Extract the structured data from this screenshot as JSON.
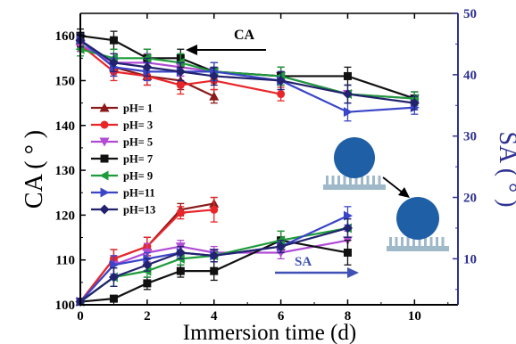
{
  "chart_data": {
    "type": "line",
    "title": "",
    "xlabel": "Immersion time (d)",
    "ylabel_left": "CA ( ° )",
    "ylabel_right": "SA ( ° )",
    "x_ticks": [
      "0",
      "2",
      "4",
      "6",
      "8",
      "10"
    ],
    "y_left_ticks": [
      "100",
      "110",
      "120",
      "130",
      "140",
      "150",
      "160"
    ],
    "y_right_ticks": [
      "10",
      "20",
      "30",
      "40",
      "50"
    ],
    "xlim": [
      0,
      11.3
    ],
    "ylim_left": [
      100,
      165
    ],
    "ylim_right": [
      2.5,
      50
    ],
    "grid": false,
    "legend_position": "left-middle",
    "annotations": {
      "ca_arrow": "CA",
      "sa_arrow": "SA"
    },
    "colors": {
      "right_axis": "#2e3192",
      "sa_arrow": "#3f51b5",
      "ca_arrow": "#000000"
    },
    "series": [
      {
        "name": "pH= 1",
        "color": "#8b1a1a",
        "marker": "triangle-up",
        "ca": {
          "x": [
            0,
            1,
            2,
            3,
            4
          ],
          "y": [
            159,
            153,
            151,
            150,
            146.5
          ],
          "err": [
            1.5,
            2,
            2,
            2,
            1.5
          ]
        },
        "sa": {
          "x": [
            0,
            1,
            2,
            3,
            4
          ],
          "y": [
            3,
            10,
            12,
            18,
            19
          ],
          "err": [
            0.5,
            1.5,
            1.5,
            1,
            1
          ]
        }
      },
      {
        "name": "pH= 3",
        "color": "#e8262a",
        "marker": "circle",
        "ca": {
          "x": [
            0,
            1,
            2,
            3,
            4,
            6
          ],
          "y": [
            158,
            152,
            151,
            149,
            150,
            147
          ],
          "err": [
            1.5,
            2,
            2,
            2,
            2,
            1.5
          ]
        },
        "sa": {
          "x": [
            0,
            1,
            2,
            3,
            4
          ],
          "y": [
            3,
            10,
            12,
            17.5,
            18
          ],
          "err": [
            0.5,
            1.5,
            1.5,
            1,
            2
          ]
        }
      },
      {
        "name": "pH= 5",
        "color": "#b14bd6",
        "marker": "triangle-down",
        "ca": {
          "x": [
            0,
            1,
            2,
            3,
            4,
            6,
            8,
            10
          ],
          "y": [
            158,
            154,
            154,
            153,
            152,
            151,
            147,
            146
          ],
          "err": [
            1.5,
            2,
            2,
            2,
            2,
            2,
            2,
            1.5
          ]
        },
        "sa": {
          "x": [
            0,
            1,
            2,
            3,
            4,
            6,
            8
          ],
          "y": [
            3,
            9,
            11,
            12,
            11,
            11,
            13
          ],
          "err": [
            0.5,
            1.5,
            1.5,
            1,
            1,
            1,
            1.5
          ]
        }
      },
      {
        "name": "pH= 7",
        "color": "#111111",
        "marker": "square",
        "ca": {
          "x": [
            0,
            1,
            2,
            3,
            4,
            6,
            8,
            10
          ],
          "y": [
            160,
            159,
            155,
            155,
            152,
            151,
            151,
            146
          ],
          "err": [
            1.5,
            2,
            2,
            2,
            2,
            2,
            2,
            1.5
          ]
        },
        "sa": {
          "x": [
            0,
            1,
            2,
            3,
            4,
            6,
            8
          ],
          "y": [
            3,
            3.5,
            6,
            8,
            8,
            13,
            11
          ],
          "err": [
            0.5,
            0.5,
            1,
            1,
            1.5,
            1.5,
            2
          ]
        }
      },
      {
        "name": "pH= 9",
        "color": "#1e9b3a",
        "marker": "triangle-left",
        "ca": {
          "x": [
            0,
            1,
            2,
            3,
            4,
            6,
            8,
            10
          ],
          "y": [
            157,
            155,
            155,
            154,
            152,
            151,
            147,
            146
          ],
          "err": [
            1.5,
            2,
            2,
            2,
            2,
            2,
            2,
            1.5
          ]
        },
        "sa": {
          "x": [
            0,
            1,
            2,
            3,
            4,
            6,
            8
          ],
          "y": [
            3,
            7,
            8,
            10,
            10.5,
            13,
            15
          ],
          "err": [
            0.5,
            1.5,
            1,
            1,
            1,
            1.5,
            1.5
          ]
        }
      },
      {
        "name": "pH=11",
        "color": "#3a45c8",
        "marker": "triangle-right",
        "ca": {
          "x": [
            0,
            1,
            2,
            3,
            4,
            6,
            8,
            10
          ],
          "y": [
            159,
            153,
            152,
            152,
            152,
            150,
            143,
            144
          ],
          "err": [
            1.5,
            2,
            2,
            2,
            2,
            2,
            2,
            1.5
          ]
        },
        "sa": {
          "x": [
            0,
            1,
            2,
            3,
            4,
            6,
            8
          ],
          "y": [
            3,
            9,
            10,
            11,
            10.5,
            12,
            17
          ],
          "err": [
            0.5,
            1.5,
            1,
            1,
            1,
            1,
            1.5
          ]
        }
      },
      {
        "name": "pH=13",
        "color": "#22226e",
        "marker": "diamond",
        "ca": {
          "x": [
            0,
            1,
            2,
            3,
            4,
            6,
            8,
            10
          ],
          "y": [
            159,
            154,
            153,
            152,
            151,
            150,
            147,
            145
          ],
          "err": [
            1.5,
            2,
            2,
            2,
            2,
            2,
            2,
            1.5
          ]
        },
        "sa": {
          "x": [
            0,
            1,
            2,
            3,
            4,
            6,
            8
          ],
          "y": [
            3,
            7,
            9,
            11,
            10.5,
            12,
            15
          ],
          "err": [
            0.5,
            1.5,
            1,
            1,
            1,
            1,
            1.5
          ]
        }
      }
    ]
  }
}
